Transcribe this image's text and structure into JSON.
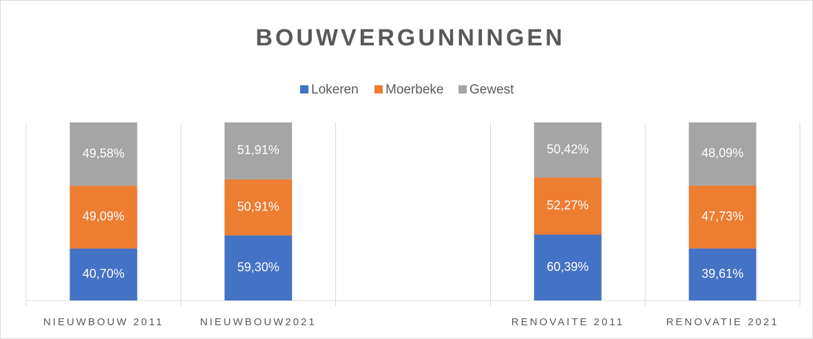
{
  "chart_data": {
    "type": "bar",
    "stacking": "percent",
    "title": "BOUWVERGUNNINGEN",
    "categories": [
      "NIEUWBOUW 2011",
      "NIEUWBOUW2021",
      null,
      "RENOVAITE 2011",
      "RENOVATIE 2021"
    ],
    "series": [
      {
        "name": "Lokeren",
        "color": "#4472c4",
        "values": [
          40.7,
          59.3,
          null,
          60.39,
          39.61
        ],
        "value_labels": [
          "40,70%",
          "59,30%",
          null,
          "60,39%",
          "39,61%"
        ]
      },
      {
        "name": "Moerbeke",
        "color": "#ed7d31",
        "values": [
          49.09,
          50.91,
          null,
          52.27,
          47.73
        ],
        "value_labels": [
          "49,09%",
          "50,91%",
          null,
          "52,27%",
          "47,73%"
        ]
      },
      {
        "name": "Gewest",
        "color": "#a5a5a5",
        "values": [
          49.58,
          51.91,
          null,
          50.42,
          48.09
        ],
        "value_labels": [
          "49,58%",
          "51,91%",
          null,
          "50,42%",
          "48,09%"
        ]
      }
    ],
    "legend": "top",
    "grid": true
  }
}
